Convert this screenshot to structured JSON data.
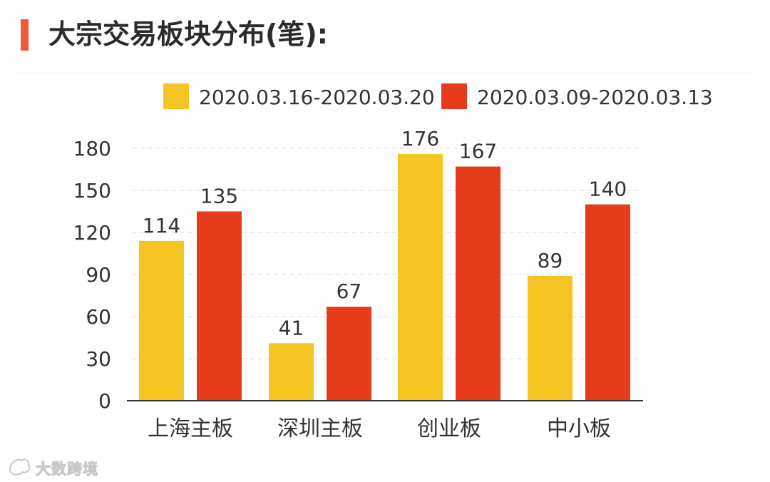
{
  "header": {
    "title": "大宗交易板块分布(笔):"
  },
  "colors": {
    "accent": "#f05a3a",
    "series_1": "#f5c623",
    "series_2": "#e63c1c",
    "axis_text": "#333333",
    "grid": "#e6e6e6"
  },
  "chart_data": {
    "type": "bar",
    "categories": [
      "上海主板",
      "深圳主板",
      "创业板",
      "中小板"
    ],
    "series": [
      {
        "name": "2020.03.16-2020.03.20",
        "values": [
          114,
          41,
          176,
          89
        ],
        "color": "#f5c623"
      },
      {
        "name": "2020.03.09-2020.03.13",
        "values": [
          135,
          67,
          167,
          140
        ],
        "color": "#e63c1c"
      }
    ],
    "yticks": [
      0,
      30,
      60,
      90,
      120,
      150,
      180
    ],
    "ylim": [
      0,
      180
    ],
    "grid": true,
    "legend": "top",
    "data_labels": true
  },
  "watermark": {
    "text": "大数跨境"
  }
}
